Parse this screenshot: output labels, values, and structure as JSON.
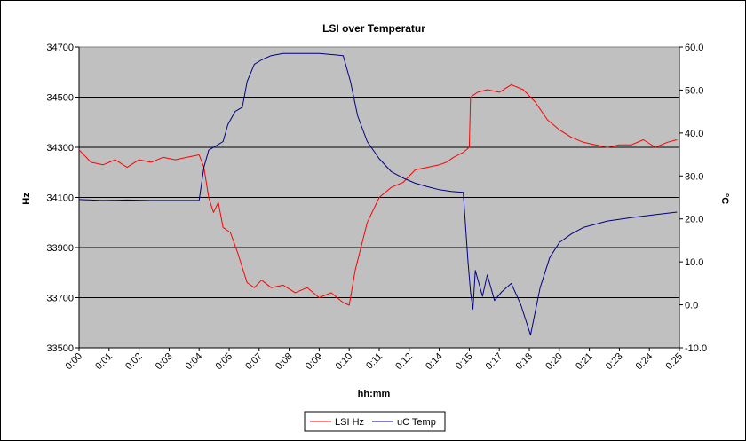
{
  "chart_data": {
    "type": "line",
    "title": "LSI over Temperatur",
    "xlabel": "hh:mm",
    "ylabel_left": "Hz",
    "ylabel_right": "°C",
    "ylim_left": [
      33500,
      34700
    ],
    "ylim_right": [
      -10,
      60
    ],
    "xlim": [
      0,
      25
    ],
    "x_ticks": [
      "0:00",
      "0:01",
      "0:02",
      "0:03",
      "0:04",
      "0:05",
      "0:07",
      "0:08",
      "0:09",
      "0:10",
      "0:11",
      "0:12",
      "0:14",
      "0:15",
      "0:17",
      "0:18",
      "0:20",
      "0:21",
      "0:23",
      "0:24",
      "0:25"
    ],
    "x_tick_positions": [
      0,
      1.25,
      2.5,
      3.75,
      5,
      6.25,
      7.5,
      8.75,
      10,
      11.25,
      12.5,
      13.75,
      15,
      16.25,
      17.5,
      18.75,
      20,
      21.25,
      22.5,
      23.75,
      25
    ],
    "y_ticks_left": [
      "33500",
      "33700",
      "33900",
      "34100",
      "34300",
      "34500",
      "34700"
    ],
    "y_tick_values_left": [
      33500,
      33700,
      33900,
      34100,
      34300,
      34500,
      34700
    ],
    "y_ticks_right": [
      "-10.0",
      "0.0",
      "10.0",
      "20.0",
      "30.0",
      "40.0",
      "50.0",
      "60.0"
    ],
    "y_tick_values_right": [
      -10,
      0,
      10,
      20,
      30,
      40,
      50,
      60
    ],
    "grid": "horizontal",
    "legend": "bottom",
    "colors": {
      "plot_bg": "#c0c0c0",
      "lsi": "#ff0000",
      "temp": "#000080"
    },
    "series": [
      {
        "name": "LSI Hz",
        "axis": "left",
        "x": [
          0,
          0.5,
          1,
          1.5,
          2,
          2.5,
          3,
          3.5,
          4,
          4.5,
          5,
          5.2,
          5.4,
          5.6,
          5.8,
          6,
          6.3,
          6.6,
          7,
          7.3,
          7.6,
          8,
          8.5,
          9,
          9.5,
          10,
          10.5,
          11,
          11.25,
          11.5,
          12,
          12.5,
          13,
          13.5,
          14,
          14.5,
          15,
          15.3,
          15.6,
          16,
          16.25,
          16.3,
          16.6,
          17,
          17.5,
          18,
          18.5,
          19,
          19.5,
          20,
          20.5,
          21,
          21.5,
          22,
          22.5,
          23,
          23.5,
          24,
          24.5,
          24.9
        ],
        "y": [
          34290,
          34240,
          34230,
          34250,
          34220,
          34250,
          34240,
          34260,
          34250,
          34260,
          34270,
          34220,
          34100,
          34040,
          34080,
          33980,
          33960,
          33880,
          33760,
          33740,
          33770,
          33740,
          33750,
          33720,
          33740,
          33700,
          33720,
          33680,
          33670,
          33810,
          34000,
          34100,
          34140,
          34160,
          34210,
          34220,
          34230,
          34240,
          34260,
          34280,
          34300,
          34500,
          34520,
          34530,
          34520,
          34550,
          34530,
          34480,
          34410,
          34370,
          34340,
          34320,
          34310,
          34300,
          34310,
          34310,
          34330,
          34300,
          34320,
          34330
        ]
      },
      {
        "name": "uC Temp",
        "axis": "right",
        "x": [
          0,
          1,
          2,
          3,
          4,
          5,
          5.2,
          5.4,
          5.7,
          6,
          6.2,
          6.5,
          6.8,
          7,
          7.3,
          7.6,
          8,
          8.5,
          9,
          10,
          11,
          11.3,
          11.6,
          12,
          12.5,
          13,
          13.5,
          14,
          14.5,
          15,
          15.5,
          16,
          16.2,
          16.3,
          16.4,
          16.5,
          16.8,
          17,
          17.3,
          17.6,
          18,
          18.4,
          18.8,
          19.2,
          19.6,
          20,
          20.5,
          21,
          22,
          23,
          24,
          24.9
        ],
        "y": [
          24.5,
          24.3,
          24.4,
          24.3,
          24.3,
          24.3,
          32,
          36,
          37,
          38,
          42,
          45,
          46,
          52,
          56,
          57,
          58,
          58.5,
          58.5,
          58.5,
          58,
          52,
          44,
          38,
          34,
          31,
          29.5,
          28.3,
          27.5,
          26.8,
          26.4,
          26.2,
          10,
          3,
          -1,
          8,
          2,
          7,
          1,
          3,
          5,
          0,
          -7,
          4,
          11,
          14.5,
          16.5,
          18,
          19.5,
          20.3,
          21,
          21.6
        ]
      }
    ]
  }
}
